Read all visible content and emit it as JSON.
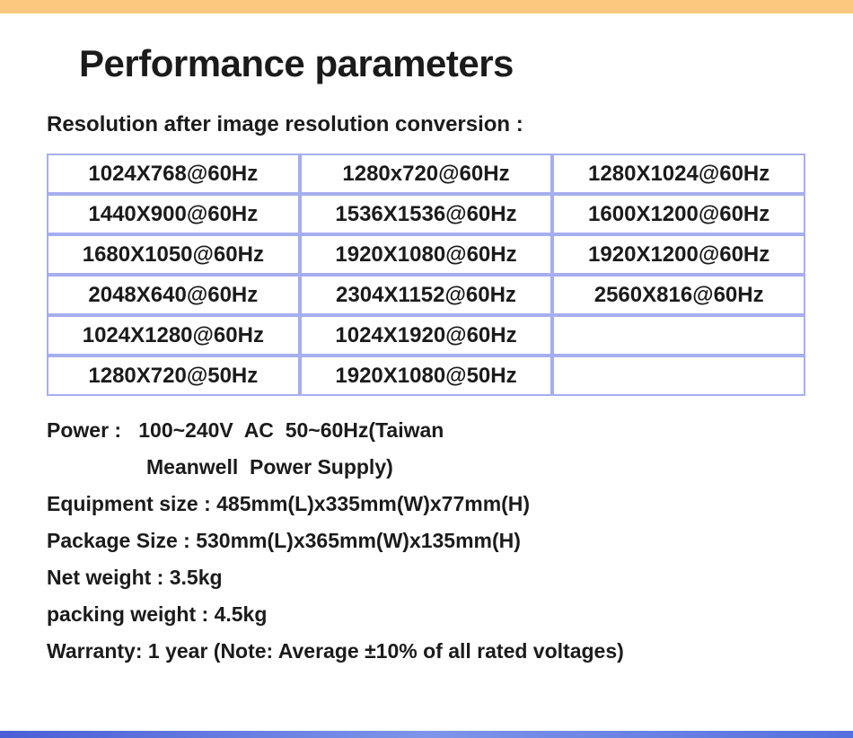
{
  "colors": {
    "top_bar": "#fac87e",
    "table_border": "#a6aeef",
    "bottom_bar_left": "#4a5fd6",
    "bottom_bar_mid": "#7e95e9",
    "bottom_bar_right": "#5570dd",
    "text": "#1b1b1b"
  },
  "header": {
    "title": "Performance parameters"
  },
  "resolution_section": {
    "heading": "Resolution after image resolution conversion :",
    "table": {
      "rows": [
        [
          "1024X768@60Hz",
          "1280x720@60Hz",
          "1280X1024@60Hz"
        ],
        [
          "1440X900@60Hz",
          "1536X1536@60Hz",
          "1600X1200@60Hz"
        ],
        [
          "1680X1050@60Hz",
          "1920X1080@60Hz",
          "1920X1200@60Hz"
        ],
        [
          "2048X640@60Hz",
          "2304X1152@60Hz",
          "2560X816@60Hz"
        ],
        [
          "1024X1280@60Hz",
          "1024X1920@60Hz",
          ""
        ],
        [
          "1280X720@50Hz",
          "1920X1080@50Hz",
          ""
        ]
      ]
    }
  },
  "specs": {
    "power_line1": "Power :   100~240V  AC  50~60Hz(Taiwan",
    "power_line2": "Meanwell  Power Supply)",
    "equipment_size": "Equipment size : 485mm(L)x335mm(W)x77mm(H)",
    "package_size": "Package Size : 530mm(L)x365mm(W)x135mm(H)",
    "net_weight": "Net weight : 3.5kg",
    "packing_weight": "packing weight : 4.5kg",
    "warranty": "Warranty: 1 year (Note: Average ±10% of all rated voltages)"
  }
}
